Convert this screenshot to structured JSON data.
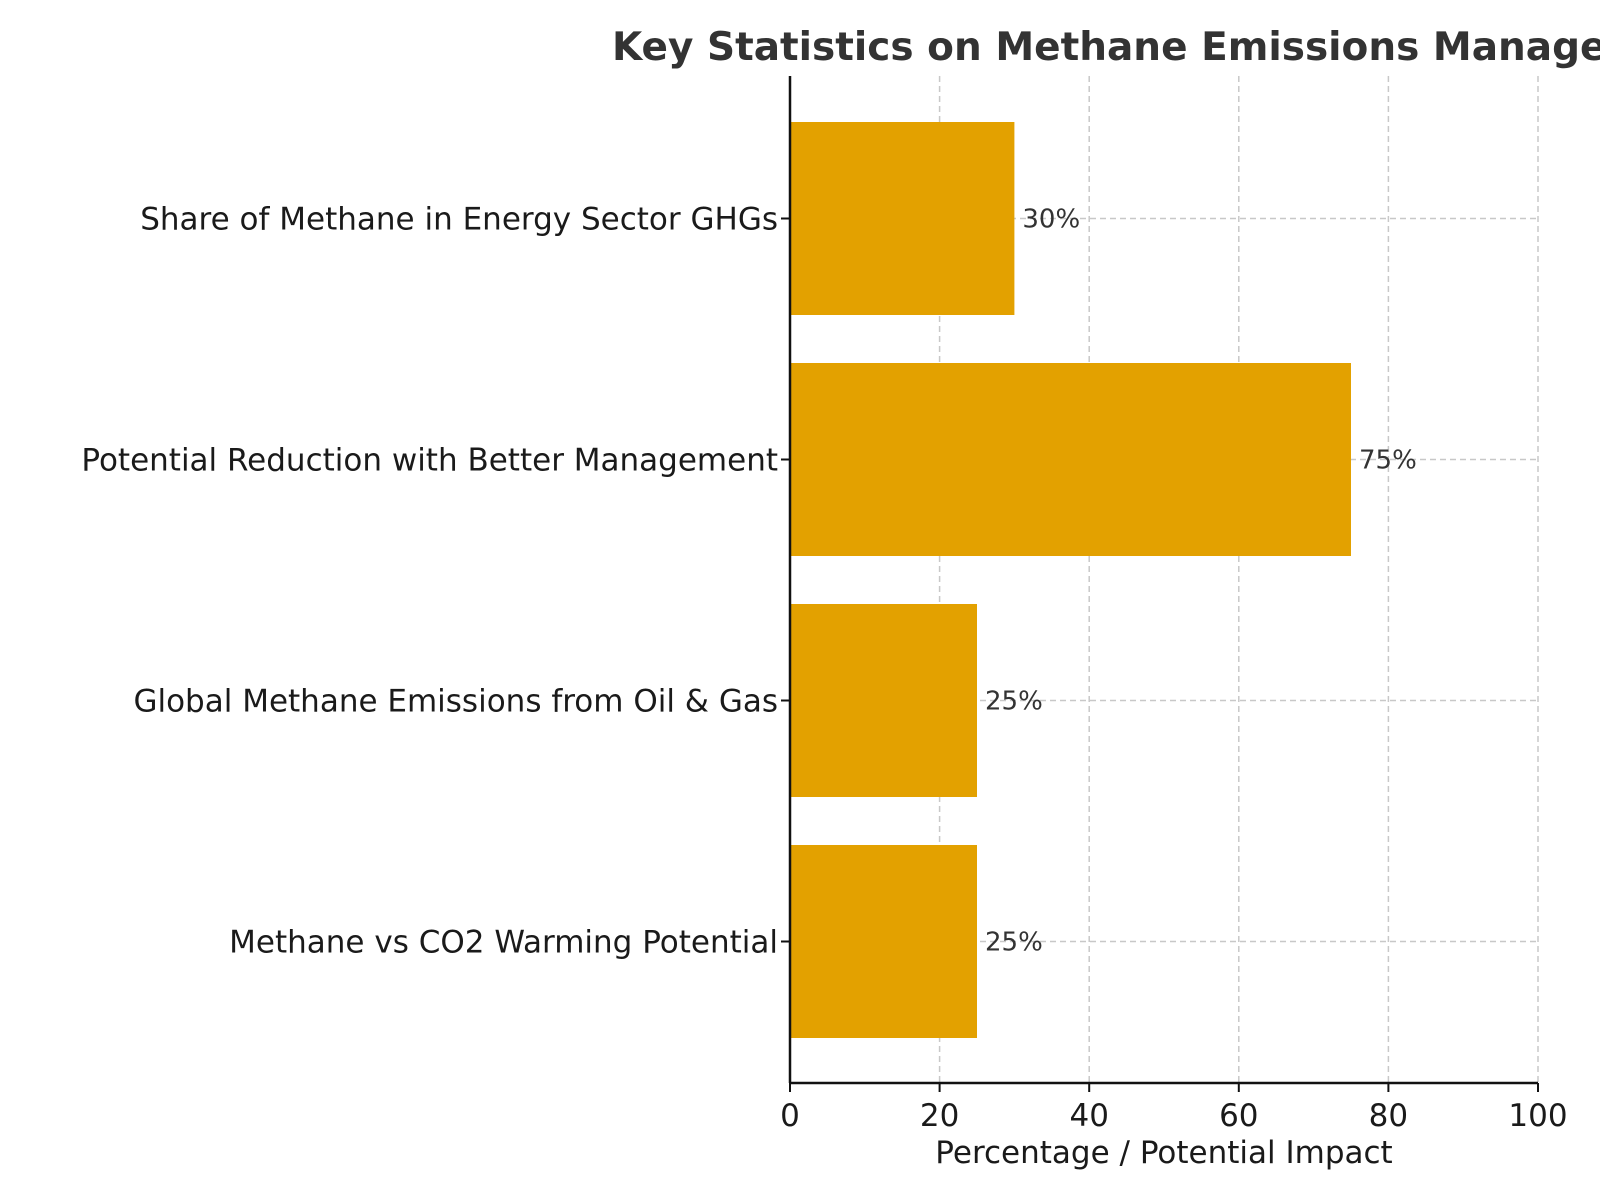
{
  "chart_data": {
    "type": "bar",
    "orientation": "horizontal",
    "title": "Key Statistics on Methane Emissions Management",
    "xlabel": "Percentage / Potential Impact",
    "ylabel": "",
    "xlim": [
      0,
      100
    ],
    "x_ticks": [
      0,
      20,
      40,
      60,
      80,
      100
    ],
    "grid": true,
    "bar_color": "#E3A100",
    "categories": [
      "Share of Methane in Energy Sector GHGs",
      "Potential Reduction with Better Management",
      "Global Methane Emissions from Oil & Gas",
      "Methane vs CO2 Warming Potential"
    ],
    "values": [
      30,
      75,
      25,
      25
    ],
    "data_labels": [
      "30%",
      "75%",
      "25%",
      "25%"
    ]
  }
}
